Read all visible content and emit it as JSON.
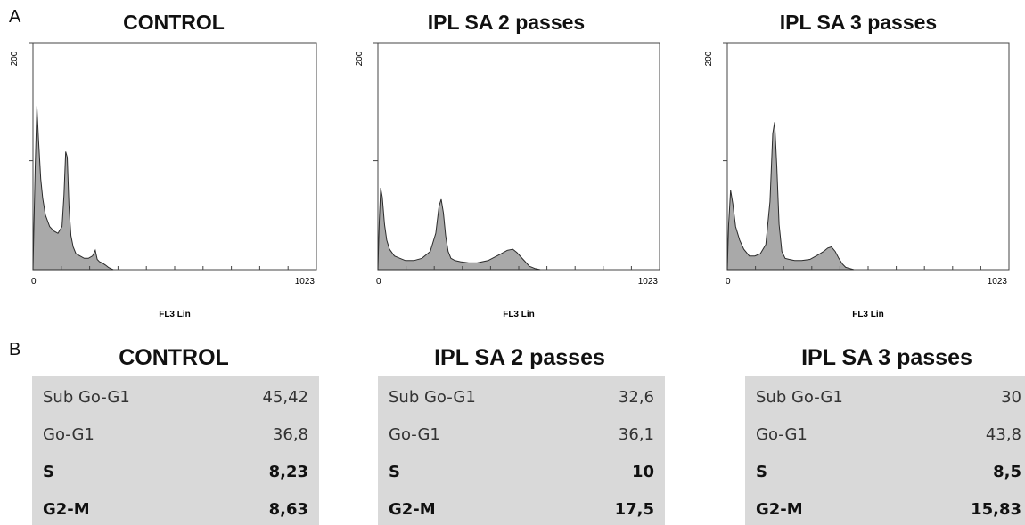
{
  "panel_labels": {
    "a": "A",
    "b": "B"
  },
  "colors": {
    "fill": "#a9a9a9",
    "stroke": "#2a2a2a",
    "table_bg": "#d9d9d9"
  },
  "chart_data": [
    {
      "type": "area",
      "title": "CONTROL",
      "xlabel": "FL3 Lin",
      "ylabel": "",
      "xlim": [
        0,
        1023
      ],
      "ylim": [
        0,
        200
      ],
      "x_tick_labels": [
        "0",
        "1023"
      ],
      "y_tick_labels": [
        "200"
      ],
      "series": [
        {
          "x": [
            0,
            8,
            14,
            20,
            28,
            35,
            45,
            60,
            75,
            90,
            105,
            112,
            118,
            124,
            130,
            137,
            145,
            155,
            170,
            185,
            200,
            215,
            225,
            232,
            240,
            250,
            262,
            272,
            280,
            290
          ],
          "values": [
            0,
            90,
            144,
            115,
            80,
            63,
            48,
            38,
            34,
            32,
            38,
            66,
            104,
            99,
            56,
            30,
            20,
            14,
            12,
            10,
            10,
            12,
            17,
            9,
            7,
            6,
            4,
            2,
            1,
            0
          ]
        }
      ]
    },
    {
      "type": "area",
      "title": "IPL SA 2 passes",
      "xlabel": "FL3 Lin",
      "ylabel": "",
      "xlim": [
        0,
        1023
      ],
      "ylim": [
        0,
        200
      ],
      "x_tick_labels": [
        "0",
        "1023"
      ],
      "y_tick_labels": [
        "200"
      ],
      "series": [
        {
          "x": [
            0,
            5,
            10,
            16,
            24,
            32,
            42,
            60,
            80,
            100,
            130,
            160,
            190,
            210,
            222,
            230,
            238,
            246,
            255,
            265,
            280,
            300,
            330,
            360,
            400,
            440,
            470,
            490,
            505,
            520,
            535,
            550,
            570,
            590
          ],
          "values": [
            0,
            42,
            72,
            64,
            40,
            26,
            18,
            12,
            10,
            8,
            8,
            10,
            16,
            32,
            56,
            62,
            50,
            30,
            16,
            10,
            8,
            7,
            6,
            6,
            8,
            13,
            17,
            18,
            15,
            11,
            7,
            3,
            1,
            0
          ]
        }
      ]
    },
    {
      "type": "area",
      "title": "IPL SA 3 passes",
      "xlabel": "FL3 Lin",
      "ylabel": "",
      "xlim": [
        0,
        1023
      ],
      "ylim": [
        0,
        200
      ],
      "x_tick_labels": [
        "0",
        "1023"
      ],
      "y_tick_labels": [
        "200"
      ],
      "series": [
        {
          "x": [
            0,
            5,
            12,
            20,
            30,
            45,
            60,
            80,
            100,
            120,
            140,
            155,
            165,
            172,
            180,
            188,
            198,
            210,
            225,
            245,
            270,
            300,
            330,
            350,
            365,
            378,
            392,
            405,
            418,
            430,
            445,
            460
          ],
          "values": [
            0,
            40,
            70,
            58,
            38,
            26,
            18,
            12,
            12,
            14,
            22,
            60,
            120,
            130,
            90,
            40,
            16,
            10,
            9,
            8,
            8,
            9,
            13,
            16,
            19,
            20,
            16,
            10,
            5,
            2,
            1,
            0
          ]
        }
      ]
    }
  ],
  "tables": [
    {
      "title": "CONTROL",
      "rows": [
        {
          "label": "Sub Go-G1",
          "value": "45,42"
        },
        {
          "label": "Go-G1",
          "value": "36,8"
        },
        {
          "label": "S",
          "value": "8,23"
        },
        {
          "label": "G2-M",
          "value": "8,63"
        }
      ]
    },
    {
      "title": "IPL SA 2 passes",
      "rows": [
        {
          "label": "Sub Go-G1",
          "value": "32,6"
        },
        {
          "label": "Go-G1",
          "value": "36,1"
        },
        {
          "label": "S",
          "value": "10"
        },
        {
          "label": "G2-M",
          "value": "17,5"
        }
      ]
    },
    {
      "title": "IPL SA 3 passes",
      "rows": [
        {
          "label": "Sub Go-G1",
          "value": "30"
        },
        {
          "label": "Go-G1",
          "value": "43,8"
        },
        {
          "label": "S",
          "value": "8,5"
        },
        {
          "label": "G2-M",
          "value": "15,83"
        }
      ]
    }
  ]
}
